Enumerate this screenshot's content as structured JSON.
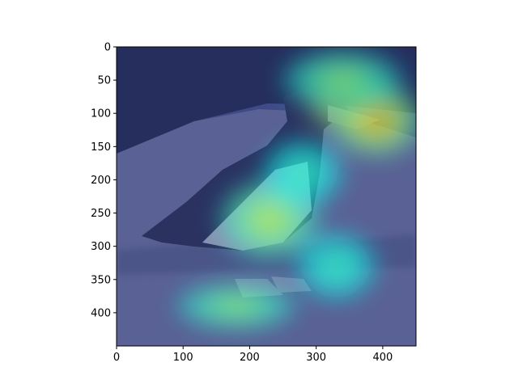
{
  "chart_data": {
    "type": "heatmap",
    "title": "",
    "xlabel": "",
    "ylabel": "",
    "xlim": [
      0,
      450
    ],
    "ylim": [
      450,
      0
    ],
    "x_ticks": [
      0,
      100,
      200,
      300,
      400
    ],
    "y_ticks": [
      0,
      50,
      100,
      150,
      200,
      250,
      300,
      350,
      400
    ],
    "x_tick_labels": [
      "0",
      "100",
      "200",
      "300",
      "400"
    ],
    "y_tick_labels": [
      "0",
      "50",
      "100",
      "150",
      "200",
      "250",
      "300",
      "350",
      "400"
    ],
    "image_size": [
      450,
      450
    ],
    "colormap": "jet",
    "background": "photo of a crested penguin standing on grey rocks in front of dark foliage, shown in blue-tinted grayscale",
    "heat_regions": [
      {
        "cx": 345,
        "cy": 90,
        "rx": 55,
        "ry": 35,
        "level": 1.0
      },
      {
        "cx": 390,
        "cy": 110,
        "rx": 70,
        "ry": 55,
        "level": 0.75
      },
      {
        "cx": 340,
        "cy": 50,
        "rx": 90,
        "ry": 45,
        "level": 0.55
      },
      {
        "cx": 230,
        "cy": 260,
        "rx": 75,
        "ry": 60,
        "level": 0.6
      },
      {
        "cx": 180,
        "cy": 390,
        "rx": 90,
        "ry": 35,
        "level": 0.55
      },
      {
        "cx": 330,
        "cy": 330,
        "rx": 60,
        "ry": 50,
        "level": 0.45
      },
      {
        "cx": 280,
        "cy": 190,
        "rx": 60,
        "ry": 50,
        "level": 0.45
      }
    ]
  }
}
